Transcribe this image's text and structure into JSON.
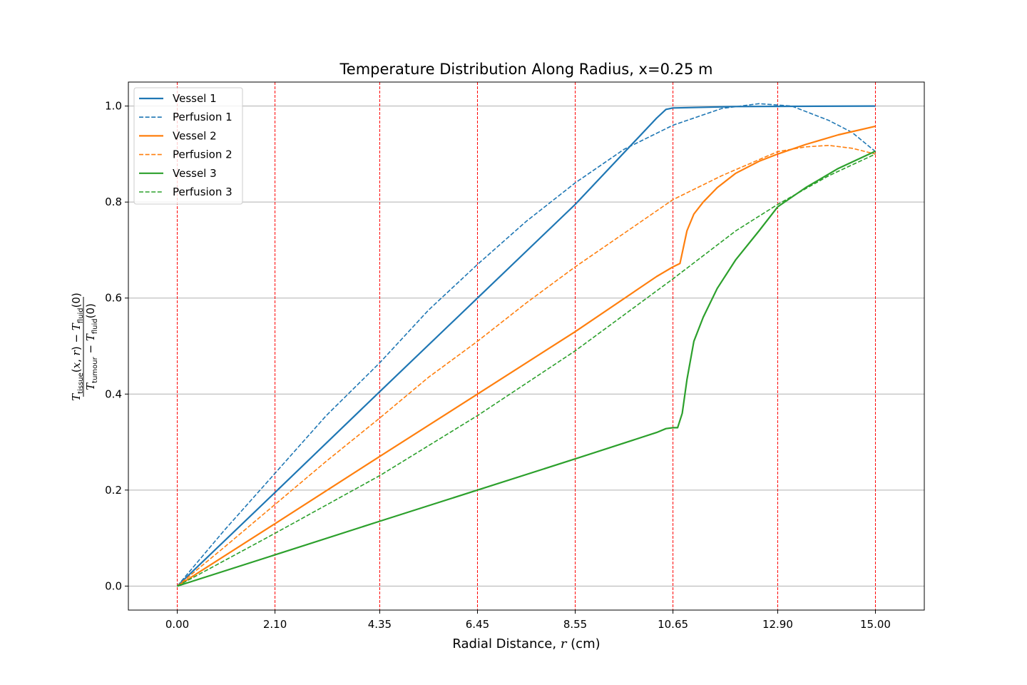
{
  "chart_data": {
    "type": "line",
    "title": "Temperature Distribution Along Radius, x=0.25 m",
    "xlabel_prefix": "Radial Distance, ",
    "xlabel_var": "r",
    "xlabel_unit": " (cm)",
    "ylabel": "(T_tissue(x,r) − T_fluid(0)) / (T_tumour − T_fluid(0))",
    "xlim": [
      -1.05,
      16.05
    ],
    "ylim": [
      -0.05,
      1.05
    ],
    "x_ticks": [
      0.0,
      2.1,
      4.35,
      6.45,
      8.55,
      10.65,
      12.9,
      15.0
    ],
    "x_tick_labels": [
      "0.00",
      "2.10",
      "4.35",
      "6.45",
      "8.55",
      "10.65",
      "12.90",
      "15.00"
    ],
    "y_ticks": [
      0.0,
      0.2,
      0.4,
      0.6,
      0.8,
      1.0
    ],
    "y_tick_labels": [
      "0.0",
      "0.2",
      "0.4",
      "0.6",
      "0.8",
      "1.0"
    ],
    "grid": "horizontal",
    "vertical_markers": [
      0.0,
      2.1,
      4.35,
      6.45,
      8.55,
      10.65,
      12.9,
      15.0
    ],
    "vertical_marker_color": "#ff0000",
    "legend_position": "upper-left",
    "series": [
      {
        "name": "Vessel 1",
        "color": "#1f77b4",
        "dash": "solid",
        "x": [
          0,
          2.1,
          4.35,
          6.45,
          8.55,
          10.3,
          10.5,
          10.65,
          12.0,
          15.0
        ],
        "y": [
          0,
          0.195,
          0.405,
          0.6,
          0.795,
          0.975,
          0.993,
          0.996,
          0.999,
          1.0
        ]
      },
      {
        "name": "Perfusion 1",
        "color": "#1f77b4",
        "dash": "dashed",
        "x": [
          0,
          1,
          2.1,
          3.2,
          4.35,
          5.4,
          6.45,
          7.5,
          8.55,
          9.6,
          10.65,
          11.7,
          12.5,
          13.2,
          14.0,
          14.5,
          15.0
        ],
        "y": [
          0,
          0.115,
          0.235,
          0.355,
          0.465,
          0.575,
          0.67,
          0.76,
          0.84,
          0.91,
          0.96,
          0.995,
          1.005,
          1.0,
          0.97,
          0.945,
          0.905
        ]
      },
      {
        "name": "Vessel 2",
        "color": "#ff7f0e",
        "dash": "solid",
        "x": [
          0,
          2.1,
          4.35,
          6.45,
          8.55,
          10.3,
          10.65,
          10.8,
          10.95,
          11.1,
          11.3,
          11.6,
          12.0,
          12.5,
          12.9,
          13.5,
          14.2,
          15.0
        ],
        "y": [
          0,
          0.13,
          0.27,
          0.4,
          0.53,
          0.645,
          0.665,
          0.672,
          0.74,
          0.775,
          0.8,
          0.83,
          0.86,
          0.885,
          0.9,
          0.92,
          0.94,
          0.958
        ]
      },
      {
        "name": "Perfusion 2",
        "color": "#ff7f0e",
        "dash": "dashed",
        "x": [
          0,
          1,
          2.1,
          3.2,
          4.35,
          5.4,
          6.45,
          7.5,
          8.55,
          9.6,
          10.65,
          11.7,
          12.9,
          13.5,
          14.0,
          14.5,
          15.0
        ],
        "y": [
          0,
          0.08,
          0.17,
          0.26,
          0.35,
          0.435,
          0.51,
          0.59,
          0.665,
          0.735,
          0.805,
          0.855,
          0.905,
          0.915,
          0.918,
          0.912,
          0.9
        ]
      },
      {
        "name": "Vessel 3",
        "color": "#2ca02c",
        "dash": "solid",
        "x": [
          0,
          2.1,
          4.35,
          6.45,
          8.55,
          10.3,
          10.5,
          10.65,
          10.75,
          10.85,
          10.95,
          11.1,
          11.3,
          11.6,
          12.0,
          12.5,
          12.9,
          13.5,
          14.2,
          15.0
        ],
        "y": [
          0,
          0.065,
          0.135,
          0.2,
          0.265,
          0.32,
          0.328,
          0.33,
          0.33,
          0.36,
          0.43,
          0.51,
          0.56,
          0.62,
          0.68,
          0.74,
          0.79,
          0.83,
          0.87,
          0.906
        ]
      },
      {
        "name": "Perfusion 3",
        "color": "#2ca02c",
        "dash": "dashed",
        "x": [
          0,
          2.1,
          4.35,
          6.45,
          8.55,
          10.65,
          12.0,
          12.9,
          14.0,
          15.0
        ],
        "y": [
          0,
          0.11,
          0.23,
          0.355,
          0.49,
          0.64,
          0.74,
          0.795,
          0.855,
          0.9
        ]
      }
    ]
  }
}
